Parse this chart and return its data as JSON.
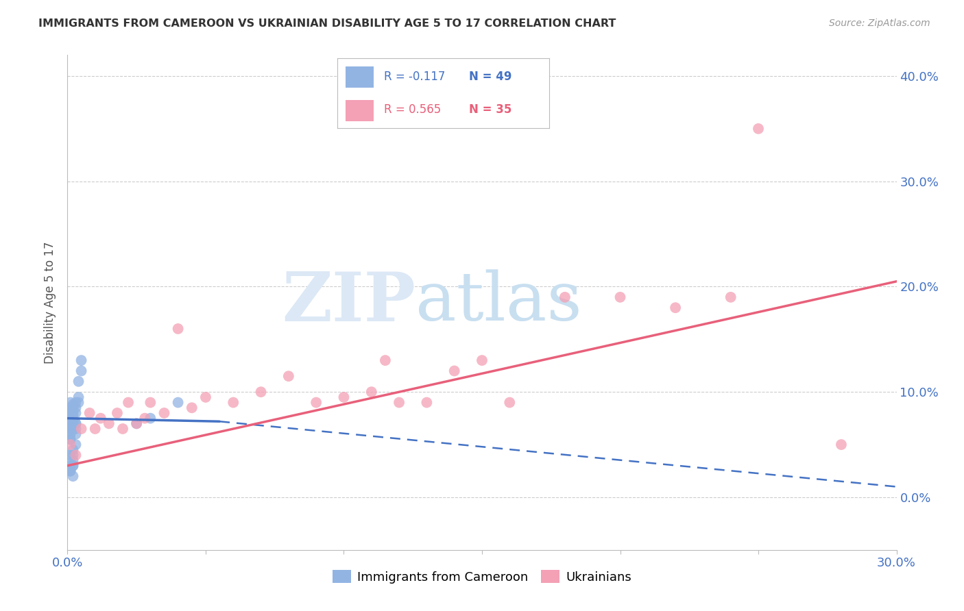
{
  "title": "IMMIGRANTS FROM CAMEROON VS UKRAINIAN DISABILITY AGE 5 TO 17 CORRELATION CHART",
  "source": "Source: ZipAtlas.com",
  "ylabel": "Disability Age 5 to 17",
  "xlim": [
    0.0,
    0.3
  ],
  "ylim": [
    -0.05,
    0.42
  ],
  "xtick_positions": [
    0.0,
    0.05,
    0.1,
    0.15,
    0.2,
    0.25,
    0.3
  ],
  "xtick_labels": [
    "0.0%",
    "",
    "",
    "",
    "",
    "",
    "30.0%"
  ],
  "yticks": [
    0.0,
    0.1,
    0.2,
    0.3,
    0.4
  ],
  "ytick_labels_right": [
    "0.0%",
    "10.0%",
    "20.0%",
    "30.0%",
    "40.0%"
  ],
  "cameroon_R": -0.117,
  "cameroon_N": 49,
  "ukrainian_R": 0.565,
  "ukrainian_N": 35,
  "cameroon_color": "#92b4e3",
  "ukrainian_color": "#f4a0b5",
  "cameroon_line_color": "#4472c4",
  "ukrainian_line_color": "#e8607a",
  "legend_label_cameroon": "Immigrants from Cameroon",
  "legend_label_ukrainian": "Ukrainians",
  "watermark_zip": "ZIP",
  "watermark_atlas": "atlas",
  "background_color": "#ffffff",
  "grid_color": "#cccccc",
  "tick_label_color": "#4472c4",
  "cameroon_x": [
    0.001,
    0.001,
    0.001,
    0.001,
    0.001,
    0.001,
    0.001,
    0.001,
    0.001,
    0.001,
    0.002,
    0.002,
    0.002,
    0.002,
    0.002,
    0.002,
    0.002,
    0.002,
    0.002,
    0.003,
    0.003,
    0.003,
    0.003,
    0.003,
    0.003,
    0.004,
    0.004,
    0.004,
    0.005,
    0.005,
    0.001,
    0.001,
    0.001,
    0.002,
    0.002,
    0.001,
    0.002,
    0.003,
    0.002,
    0.001,
    0.04,
    0.002,
    0.001,
    0.025,
    0.03,
    0.003,
    0.002,
    0.001,
    0.002
  ],
  "cameroon_y": [
    0.07,
    0.08,
    0.075,
    0.065,
    0.06,
    0.085,
    0.07,
    0.065,
    0.09,
    0.055,
    0.08,
    0.075,
    0.085,
    0.07,
    0.078,
    0.073,
    0.082,
    0.065,
    0.088,
    0.09,
    0.085,
    0.065,
    0.08,
    0.07,
    0.06,
    0.095,
    0.11,
    0.09,
    0.13,
    0.12,
    0.04,
    0.03,
    0.025,
    0.035,
    0.045,
    0.055,
    0.03,
    0.05,
    0.02,
    0.025,
    0.09,
    0.03,
    0.025,
    0.07,
    0.075,
    0.07,
    0.065,
    0.06,
    0.04
  ],
  "ukrainian_x": [
    0.001,
    0.003,
    0.005,
    0.008,
    0.01,
    0.012,
    0.015,
    0.018,
    0.02,
    0.022,
    0.025,
    0.028,
    0.03,
    0.035,
    0.04,
    0.045,
    0.05,
    0.06,
    0.07,
    0.08,
    0.09,
    0.1,
    0.11,
    0.115,
    0.12,
    0.13,
    0.14,
    0.15,
    0.16,
    0.18,
    0.2,
    0.22,
    0.24,
    0.25,
    0.28
  ],
  "ukrainian_y": [
    0.05,
    0.04,
    0.065,
    0.08,
    0.065,
    0.075,
    0.07,
    0.08,
    0.065,
    0.09,
    0.07,
    0.075,
    0.09,
    0.08,
    0.16,
    0.085,
    0.095,
    0.09,
    0.1,
    0.115,
    0.09,
    0.095,
    0.1,
    0.13,
    0.09,
    0.09,
    0.12,
    0.13,
    0.09,
    0.19,
    0.19,
    0.18,
    0.19,
    0.35,
    0.05
  ],
  "cam_line_start_x": 0.0,
  "cam_line_solid_end_x": 0.055,
  "cam_line_end_x": 0.3,
  "cam_line_start_y": 0.075,
  "cam_line_solid_end_y": 0.072,
  "cam_line_end_y": 0.01,
  "ukr_line_start_x": 0.0,
  "ukr_line_end_x": 0.3,
  "ukr_line_start_y": 0.03,
  "ukr_line_end_y": 0.205
}
